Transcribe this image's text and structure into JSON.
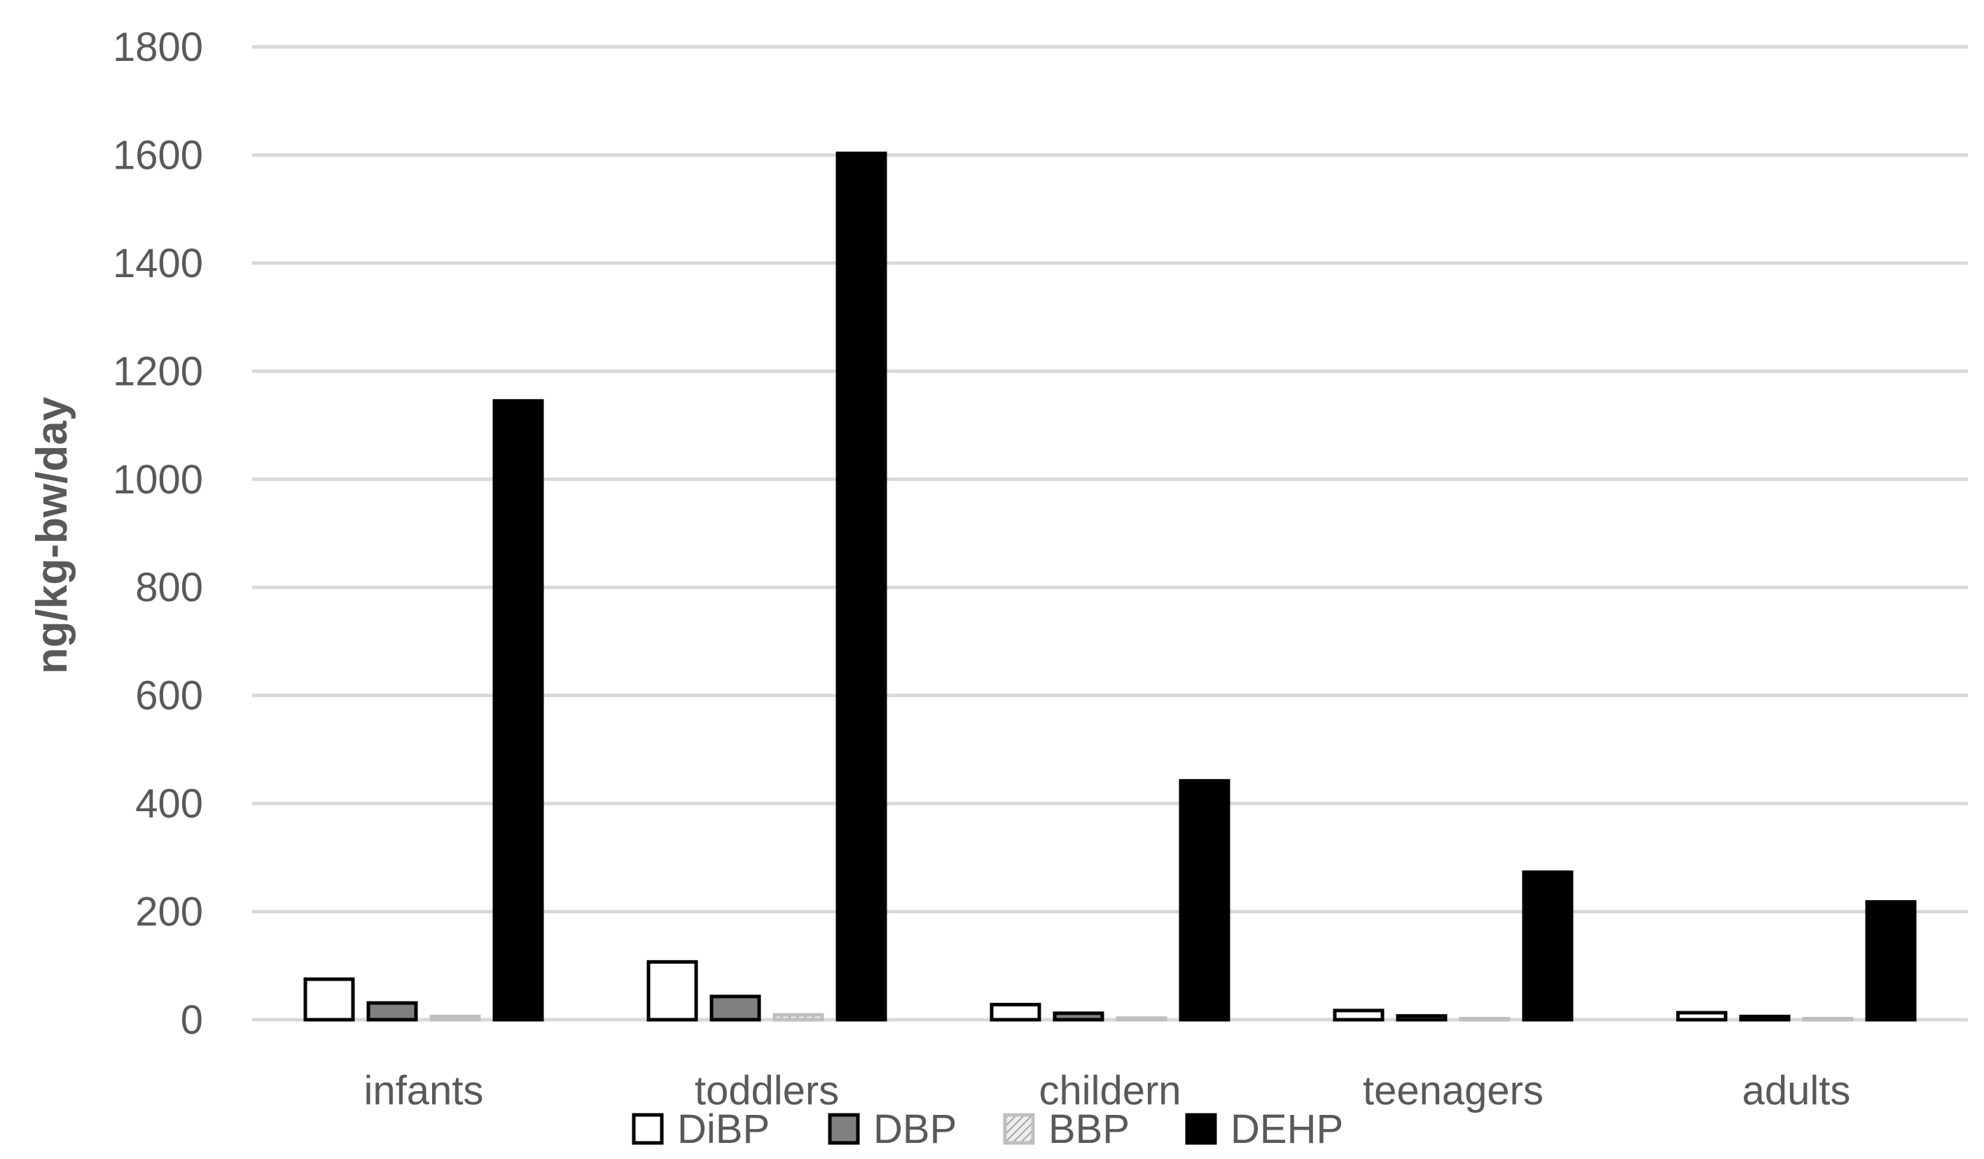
{
  "chart_data": {
    "type": "bar",
    "title": "",
    "xlabel": "",
    "ylabel": "ng/kg-bw/day",
    "ylim": [
      0,
      1800
    ],
    "yticks": [
      0,
      200,
      400,
      600,
      800,
      1000,
      1200,
      1400,
      1600,
      1800
    ],
    "grid": true,
    "legend_position": "bottom",
    "categories": [
      "infants",
      "toddlers",
      "childern",
      "teenagers",
      "adults"
    ],
    "series": [
      {
        "name": "DiBP",
        "values": [
          75,
          107,
          28,
          17,
          13
        ],
        "fill": "#ffffff",
        "stroke": "#000000",
        "pattern": "none"
      },
      {
        "name": "DBP",
        "values": [
          31,
          43,
          12,
          7,
          6
        ],
        "fill": "#808080",
        "stroke": "#000000",
        "pattern": "none"
      },
      {
        "name": "BBP",
        "values": [
          6,
          9,
          3,
          2,
          2
        ],
        "fill": "#d9d9d9",
        "stroke": "#bfbfbf",
        "pattern": "hatch"
      },
      {
        "name": "DEHP",
        "values": [
          1145,
          1603,
          442,
          273,
          218
        ],
        "fill": "#000000",
        "stroke": "#000000",
        "pattern": "none"
      }
    ],
    "colors": {
      "grid": "#d9d9d9",
      "axis": "#d9d9d9",
      "text": "#595959"
    }
  }
}
